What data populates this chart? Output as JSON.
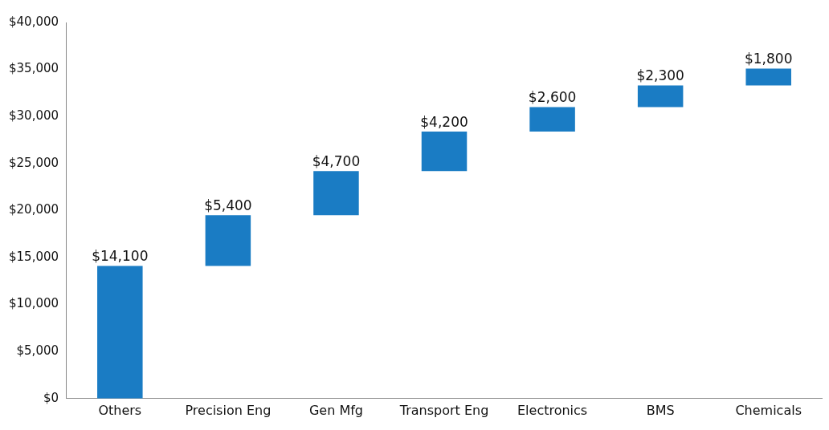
{
  "chart_data": {
    "type": "bar",
    "categories": [
      "Others",
      "Precision Eng",
      "Gen Mfg",
      "Transport Eng",
      "Electronics",
      "BMS",
      "Chemicals"
    ],
    "values": [
      14100,
      5400,
      4700,
      4200,
      2600,
      2300,
      1800
    ],
    "base": [
      0,
      14100,
      19500,
      24200,
      28400,
      31000,
      33300
    ],
    "value_labels": [
      "$14,100",
      "$5,400",
      "$4,700",
      "$4,200",
      "$2,600",
      "$2,300",
      "$1,800"
    ],
    "color": "#1a7cc4",
    "ylim": [
      0,
      40000
    ],
    "yticks": [
      {
        "value": 0,
        "label": "$0"
      },
      {
        "value": 5000,
        "label": "$5,000"
      },
      {
        "value": 10000,
        "label": "$10,000"
      },
      {
        "value": 15000,
        "label": "$15,000"
      },
      {
        "value": 20000,
        "label": "$20,000"
      },
      {
        "value": 25000,
        "label": "$25,000"
      },
      {
        "value": 30000,
        "label": "$30,000"
      },
      {
        "value": 35000,
        "label": "$35,000"
      },
      {
        "value": 40000,
        "label": "$40,000"
      }
    ],
    "grid": false,
    "legend": false
  }
}
